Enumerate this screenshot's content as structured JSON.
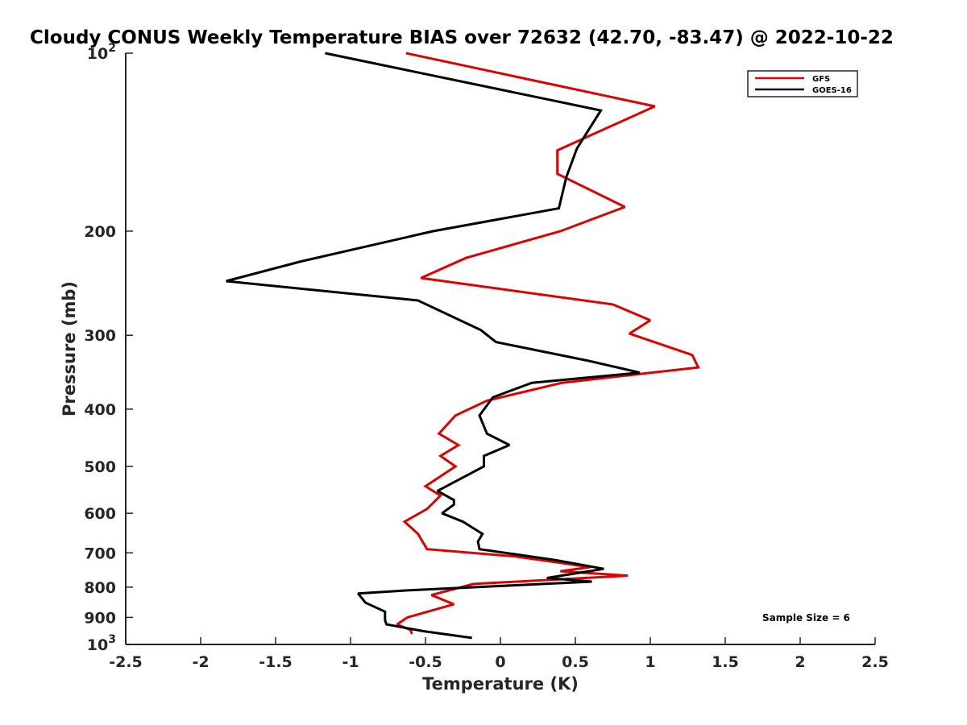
{
  "chart_data": {
    "type": "line",
    "title": "Cloudy CONUS Weekly Temperature BIAS over 72632 (42.70, -83.47) @ 2022-10-22",
    "xlabel": "Temperature (K)",
    "ylabel": "Pressure (mb)",
    "xlim": [
      -2.5,
      2.5
    ],
    "ylim": [
      100,
      1000
    ],
    "y_scale": "log",
    "y_reversed": true,
    "x_ticks": [
      "-2.5",
      "-2",
      "-1.5",
      "-1",
      "-0.5",
      "0",
      "0.5",
      "1",
      "1.5",
      "2",
      "2.5"
    ],
    "y_ticks": [
      {
        "base": "10",
        "exp": "2",
        "value": 100
      },
      {
        "label": "200",
        "value": 200
      },
      {
        "label": "300",
        "value": 300
      },
      {
        "label": "400",
        "value": 400
      },
      {
        "label": "500",
        "value": 500
      },
      {
        "label": "600",
        "value": 600
      },
      {
        "label": "700",
        "value": 700
      },
      {
        "label": "800",
        "value": 800
      },
      {
        "label": "900",
        "value": 900
      },
      {
        "base": "10",
        "exp": "3",
        "value": 1000
      }
    ],
    "legend_position": "top-right",
    "annotation": "Sample Size = 6",
    "series": [
      {
        "name": "GFS",
        "color": "#e00000",
        "points": [
          [
            -0.63,
            100
          ],
          [
            1.03,
            123
          ],
          [
            0.38,
            146
          ],
          [
            0.38,
            160
          ],
          [
            0.83,
            182
          ],
          [
            0.4,
            200
          ],
          [
            -0.23,
            222
          ],
          [
            -0.53,
            240
          ],
          [
            0.75,
            266
          ],
          [
            1.0,
            283
          ],
          [
            0.86,
            298
          ],
          [
            1.28,
            324
          ],
          [
            1.32,
            340
          ],
          [
            0.41,
            361
          ],
          [
            -0.09,
            387
          ],
          [
            -0.3,
            410
          ],
          [
            -0.41,
            440
          ],
          [
            -0.28,
            460
          ],
          [
            -0.4,
            480
          ],
          [
            -0.3,
            500
          ],
          [
            -0.5,
            540
          ],
          [
            -0.4,
            560
          ],
          [
            -0.49,
            590
          ],
          [
            -0.64,
            620
          ],
          [
            -0.55,
            650
          ],
          [
            -0.52,
            670
          ],
          [
            -0.49,
            690
          ],
          [
            0.1,
            710
          ],
          [
            0.6,
            740
          ],
          [
            0.4,
            752
          ],
          [
            0.85,
            765
          ],
          [
            -0.18,
            790
          ],
          [
            -0.46,
            825
          ],
          [
            -0.31,
            855
          ],
          [
            -0.62,
            900
          ],
          [
            -0.69,
            925
          ],
          [
            -0.6,
            945
          ],
          [
            -0.59,
            960
          ]
        ]
      },
      {
        "name": "GOES-16",
        "color": "#000000",
        "points": [
          [
            -1.17,
            100
          ],
          [
            0.67,
            125
          ],
          [
            0.51,
            145
          ],
          [
            0.44,
            162
          ],
          [
            0.39,
            183
          ],
          [
            -0.45,
            200
          ],
          [
            -1.33,
            225
          ],
          [
            -1.83,
            243
          ],
          [
            -0.55,
            262
          ],
          [
            -0.13,
            294
          ],
          [
            -0.03,
            308
          ],
          [
            0.58,
            331
          ],
          [
            0.93,
            347
          ],
          [
            0.21,
            361
          ],
          [
            -0.05,
            382
          ],
          [
            -0.14,
            410
          ],
          [
            -0.09,
            440
          ],
          [
            0.06,
            460
          ],
          [
            -0.11,
            480
          ],
          [
            -0.11,
            500
          ],
          [
            -0.42,
            550
          ],
          [
            -0.31,
            570
          ],
          [
            -0.31,
            580
          ],
          [
            -0.39,
            600
          ],
          [
            -0.25,
            620
          ],
          [
            -0.12,
            650
          ],
          [
            -0.15,
            670
          ],
          [
            -0.14,
            690
          ],
          [
            0.37,
            720
          ],
          [
            0.69,
            745
          ],
          [
            0.31,
            772
          ],
          [
            0.61,
            783
          ],
          [
            -0.61,
            810
          ],
          [
            -0.95,
            820
          ],
          [
            -0.9,
            850
          ],
          [
            -0.77,
            880
          ],
          [
            -0.77,
            910
          ],
          [
            -0.76,
            925
          ],
          [
            -0.51,
            950
          ],
          [
            -0.19,
            975
          ]
        ]
      }
    ]
  }
}
